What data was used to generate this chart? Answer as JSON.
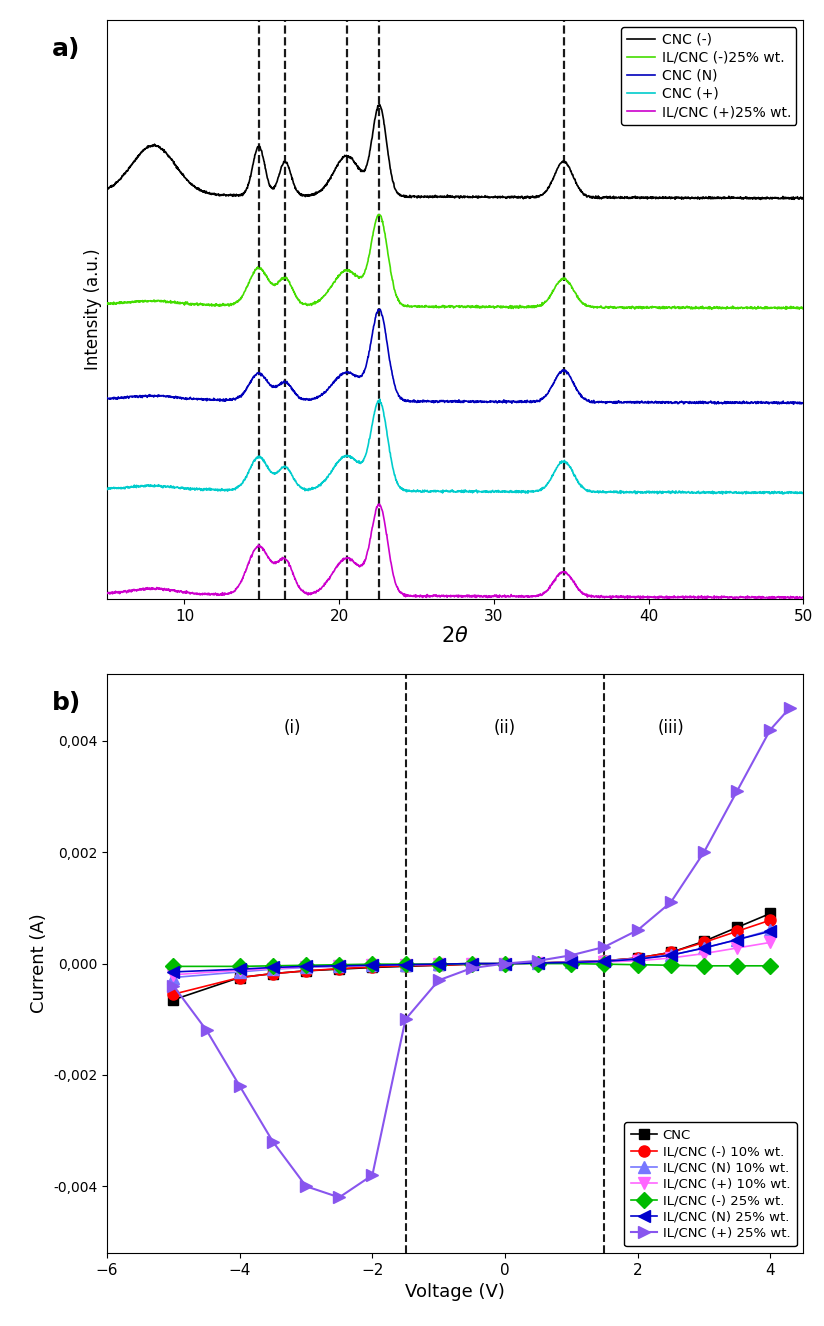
{
  "panel_a": {
    "xlabel": "2θ",
    "ylabel": "Intensity (a.u.)",
    "xlim": [
      5,
      50
    ],
    "dashed_lines_x": [
      14.8,
      16.5,
      20.5,
      22.6,
      34.5
    ],
    "curve_order": [
      "CNC (-)",
      "IL/CNC (-)25% wt.",
      "CNC (N)",
      "CNC (+)",
      "IL/CNC (+)25% wt."
    ],
    "colors_a": {
      "CNC (-)": "#000000",
      "IL/CNC (-)25% wt.": "#44dd00",
      "CNC (N)": "#0000bb",
      "CNC (+)": "#00cccc",
      "IL/CNC (+)25% wt.": "#cc00cc"
    },
    "offsets": {
      "CNC (-)": 4.0,
      "IL/CNC (-)25% wt.": 2.9,
      "CNC (N)": 1.95,
      "CNC (+)": 1.05,
      "IL/CNC (+)25% wt.": 0.0
    }
  },
  "panel_b": {
    "xlabel": "Voltage (V)",
    "ylabel": "Current (A)",
    "xlim": [
      -6,
      4.5
    ],
    "ylim": [
      -0.0052,
      0.0052
    ],
    "yticks": [
      -0.004,
      -0.002,
      0.0,
      0.002,
      0.004
    ],
    "ytick_labels": [
      "-0,004",
      "-0,002",
      "0,000",
      "0,002",
      "0,004"
    ],
    "dashed_lines": [
      -1.5,
      1.5
    ],
    "region_labels": [
      [
        -3.2,
        0.0044,
        "(i)"
      ],
      [
        0.0,
        0.0044,
        "(ii)"
      ],
      [
        2.5,
        0.0044,
        "(iii)"
      ]
    ],
    "series": {
      "CNC": {
        "color": "#000000",
        "marker": "s",
        "ms": 7,
        "lw": 1.2,
        "x": [
          -5.0,
          -4.0,
          -3.5,
          -3.0,
          -2.5,
          -2.0,
          -1.5,
          -1.0,
          -0.5,
          0.0,
          0.5,
          1.0,
          1.5,
          2.0,
          2.5,
          3.0,
          3.5,
          4.0
        ],
        "y": [
          -0.00065,
          -0.00025,
          -0.00018,
          -0.00013,
          -0.0001,
          -7e-05,
          -5e-05,
          -3e-05,
          -1e-05,
          0.0,
          1e-05,
          3e-05,
          5e-05,
          0.0001,
          0.0002,
          0.0004,
          0.00065,
          0.0009
        ]
      },
      "IL/CNC (-) 10% wt.": {
        "color": "#ff0000",
        "marker": "o",
        "ms": 8,
        "lw": 1.2,
        "x": [
          -5.0,
          -4.0,
          -3.5,
          -3.0,
          -2.5,
          -2.0,
          -1.5,
          -1.0,
          -0.5,
          0.0,
          0.5,
          1.0,
          1.5,
          2.0,
          2.5,
          3.0,
          3.5,
          4.0
        ],
        "y": [
          -0.00055,
          -0.00025,
          -0.00018,
          -0.00013,
          -9e-05,
          -6e-05,
          -4e-05,
          -3e-05,
          -1e-05,
          0.0,
          1e-05,
          3e-05,
          5e-05,
          0.0001,
          0.0002,
          0.00038,
          0.00058,
          0.00078
        ]
      },
      "IL/CNC (N) 10% wt.": {
        "color": "#7777ff",
        "marker": "^",
        "ms": 8,
        "lw": 1.2,
        "x": [
          -5.0,
          -4.0,
          -3.5,
          -3.0,
          -2.5,
          -2.0,
          -1.5,
          -1.0,
          -0.5,
          0.0,
          0.5,
          1.0,
          1.5,
          2.0,
          2.5,
          3.0,
          3.5,
          4.0
        ],
        "y": [
          -0.00025,
          -0.00015,
          -0.0001,
          -7e-05,
          -5e-05,
          -3e-05,
          -2e-05,
          -1e-05,
          0.0,
          0.0,
          1e-05,
          3e-05,
          5e-05,
          9e-05,
          0.00015,
          0.00028,
          0.00043,
          0.0006
        ]
      },
      "IL/CNC (+) 10% wt.": {
        "color": "#ff66ff",
        "marker": "v",
        "ms": 8,
        "lw": 1.2,
        "x": [
          -5.0,
          -4.0,
          -3.5,
          -3.0,
          -2.5,
          -2.0,
          -1.5,
          -1.0,
          -0.5,
          0.0,
          0.5,
          1.0,
          1.5,
          2.0,
          2.5,
          3.0,
          3.5,
          4.0
        ],
        "y": [
          -0.0002,
          -0.00012,
          -9e-05,
          -6e-05,
          -4e-05,
          -3e-05,
          -2e-05,
          -1e-05,
          0.0,
          0.0,
          1e-05,
          2e-05,
          3e-05,
          5e-05,
          0.0001,
          0.00018,
          0.00028,
          0.00038
        ]
      },
      "IL/CNC (-) 25% wt.": {
        "color": "#00bb00",
        "marker": "D",
        "ms": 8,
        "lw": 1.2,
        "x": [
          -5.0,
          -4.0,
          -3.5,
          -3.0,
          -2.5,
          -2.0,
          -1.5,
          -1.0,
          -0.5,
          0.0,
          0.5,
          1.0,
          1.5,
          2.0,
          2.5,
          3.0,
          3.5,
          4.0
        ],
        "y": [
          -5e-05,
          -5e-05,
          -4e-05,
          -3e-05,
          -2e-05,
          -1e-05,
          -1e-05,
          -1e-05,
          0.0,
          0.0,
          0.0,
          0.0,
          -1e-05,
          -2e-05,
          -3e-05,
          -4e-05,
          -4e-05,
          -4e-05
        ]
      },
      "IL/CNC (N) 25% wt.": {
        "color": "#0000cc",
        "marker": "<",
        "ms": 8,
        "lw": 1.2,
        "x": [
          -5.0,
          -4.0,
          -3.5,
          -3.0,
          -2.5,
          -2.0,
          -1.5,
          -1.0,
          -0.5,
          0.0,
          0.5,
          1.0,
          1.5,
          2.0,
          2.5,
          3.0,
          3.5,
          4.0
        ],
        "y": [
          -0.00015,
          -0.0001,
          -7e-05,
          -5e-05,
          -4e-05,
          -3e-05,
          -2e-05,
          -1e-05,
          0.0,
          0.0,
          1e-05,
          2e-05,
          4e-05,
          8e-05,
          0.00015,
          0.00028,
          0.00043,
          0.00058
        ]
      },
      "IL/CNC (+) 25% wt.": {
        "color": "#8855ee",
        "marker": ">",
        "ms": 9,
        "lw": 1.5,
        "x": [
          -5.0,
          -4.5,
          -4.0,
          -3.5,
          -3.0,
          -2.5,
          -2.0,
          -1.5,
          -1.0,
          -0.5,
          0.0,
          0.5,
          1.0,
          1.5,
          2.0,
          2.5,
          3.0,
          3.5,
          4.0,
          4.3
        ],
        "y": [
          -0.0004,
          -0.0012,
          -0.0022,
          -0.0032,
          -0.004,
          -0.0042,
          -0.0038,
          -0.001,
          -0.0003,
          -8e-05,
          0.0,
          5e-05,
          0.00015,
          0.0003,
          0.0006,
          0.0011,
          0.002,
          0.0031,
          0.0042,
          0.0046
        ]
      }
    },
    "series_order": [
      "CNC",
      "IL/CNC (-) 10% wt.",
      "IL/CNC (N) 10% wt.",
      "IL/CNC (+) 10% wt.",
      "IL/CNC (-) 25% wt.",
      "IL/CNC (N) 25% wt.",
      "IL/CNC (+) 25% wt."
    ]
  }
}
